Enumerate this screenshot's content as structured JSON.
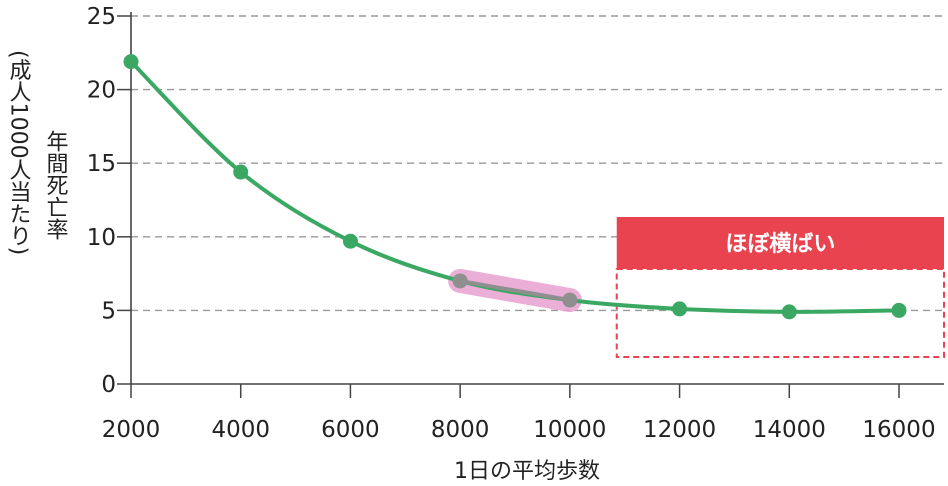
{
  "chart_data": {
    "type": "line",
    "title": "",
    "xlabel": "1日の平均歩数",
    "ylabel": "年間死亡率",
    "ylabel_unit": "(成人1000人当たり)",
    "x": [
      2000,
      4000,
      6000,
      8000,
      10000,
      12000,
      14000,
      16000
    ],
    "x_tick_labels": [
      "2000",
      "4000",
      "6000",
      "8000",
      "10000",
      "12000",
      "14000",
      "16000"
    ],
    "series": [
      {
        "values": [
          21.9,
          14.4,
          9.7,
          7.0,
          5.7,
          5.1,
          4.9,
          5.0
        ]
      }
    ],
    "y_ticks": [
      0,
      5,
      10,
      15,
      20,
      25
    ],
    "y_tick_labels": [
      "0",
      "5",
      "10",
      "15",
      "20",
      "25"
    ],
    "xlim": [
      2000,
      16800
    ],
    "ylim": [
      0,
      25
    ],
    "grid": "horizontal dashed",
    "highlight_segment": {
      "from_x": 8000,
      "to_x": 10000,
      "color": "#e8a0d0"
    },
    "annotation": {
      "label": "ほぼ横ばい",
      "x_range": [
        10800,
        16800
      ],
      "y_range": [
        1.8,
        7.8
      ],
      "color": "#e8434f"
    },
    "colors": {
      "line": "#3aa862",
      "marker": "#3aa862",
      "grid": "#999999",
      "annotation": "#e8434f"
    }
  }
}
